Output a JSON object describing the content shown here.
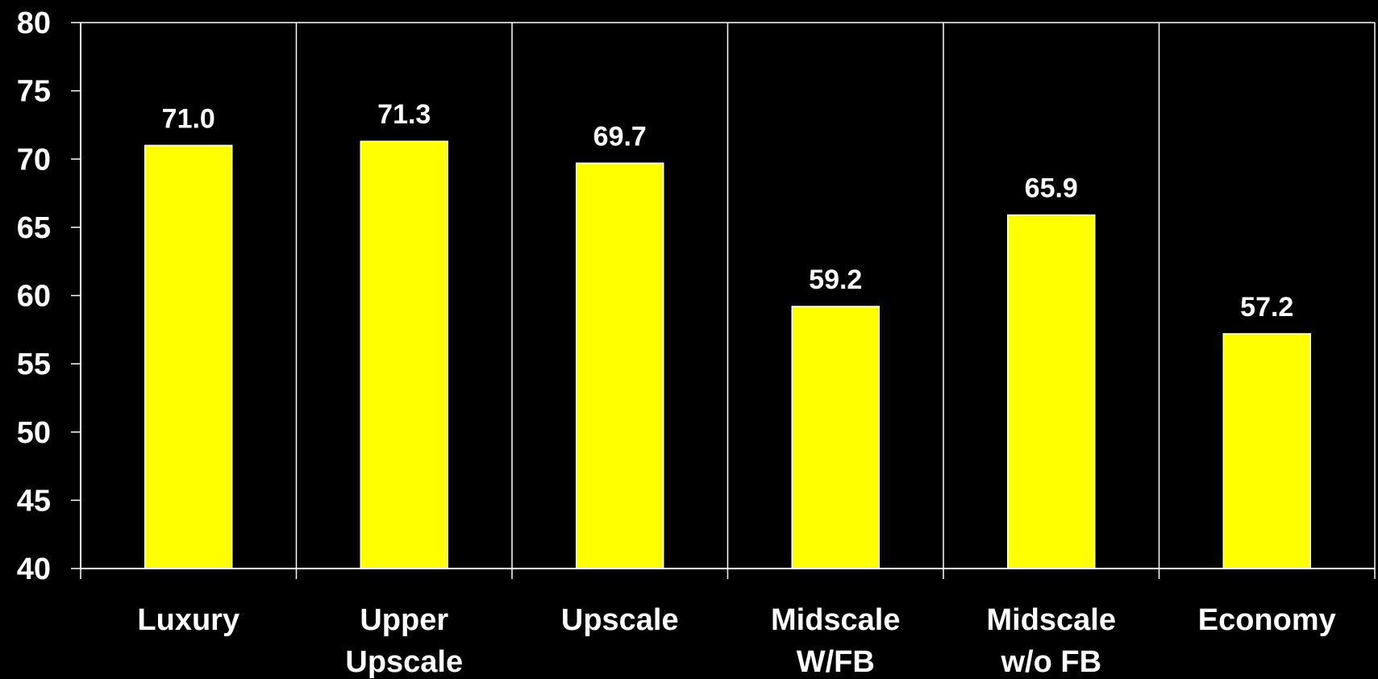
{
  "chart_data": {
    "type": "bar",
    "categories": [
      [
        "Luxury"
      ],
      [
        "Upper",
        "Upscale"
      ],
      [
        "Upscale"
      ],
      [
        "Midscale",
        "W/FB"
      ],
      [
        "Midscale",
        "w/o FB"
      ],
      [
        "Economy"
      ]
    ],
    "values": [
      71.0,
      71.3,
      69.7,
      59.2,
      65.9,
      57.2
    ],
    "data_labels": [
      "71.0",
      "71.3",
      "69.7",
      "59.2",
      "65.9",
      "57.2"
    ],
    "ylim": [
      40,
      80
    ],
    "yticks": [
      40,
      45,
      50,
      55,
      60,
      65,
      70,
      75,
      80
    ],
    "grid": "vertical category dividers",
    "legend": "none",
    "colors": {
      "background": "#000000",
      "bar_fill": "#ffff00",
      "bar_stroke": "#ffffff",
      "axis": "#ffffff",
      "text": "#ffffff"
    }
  }
}
